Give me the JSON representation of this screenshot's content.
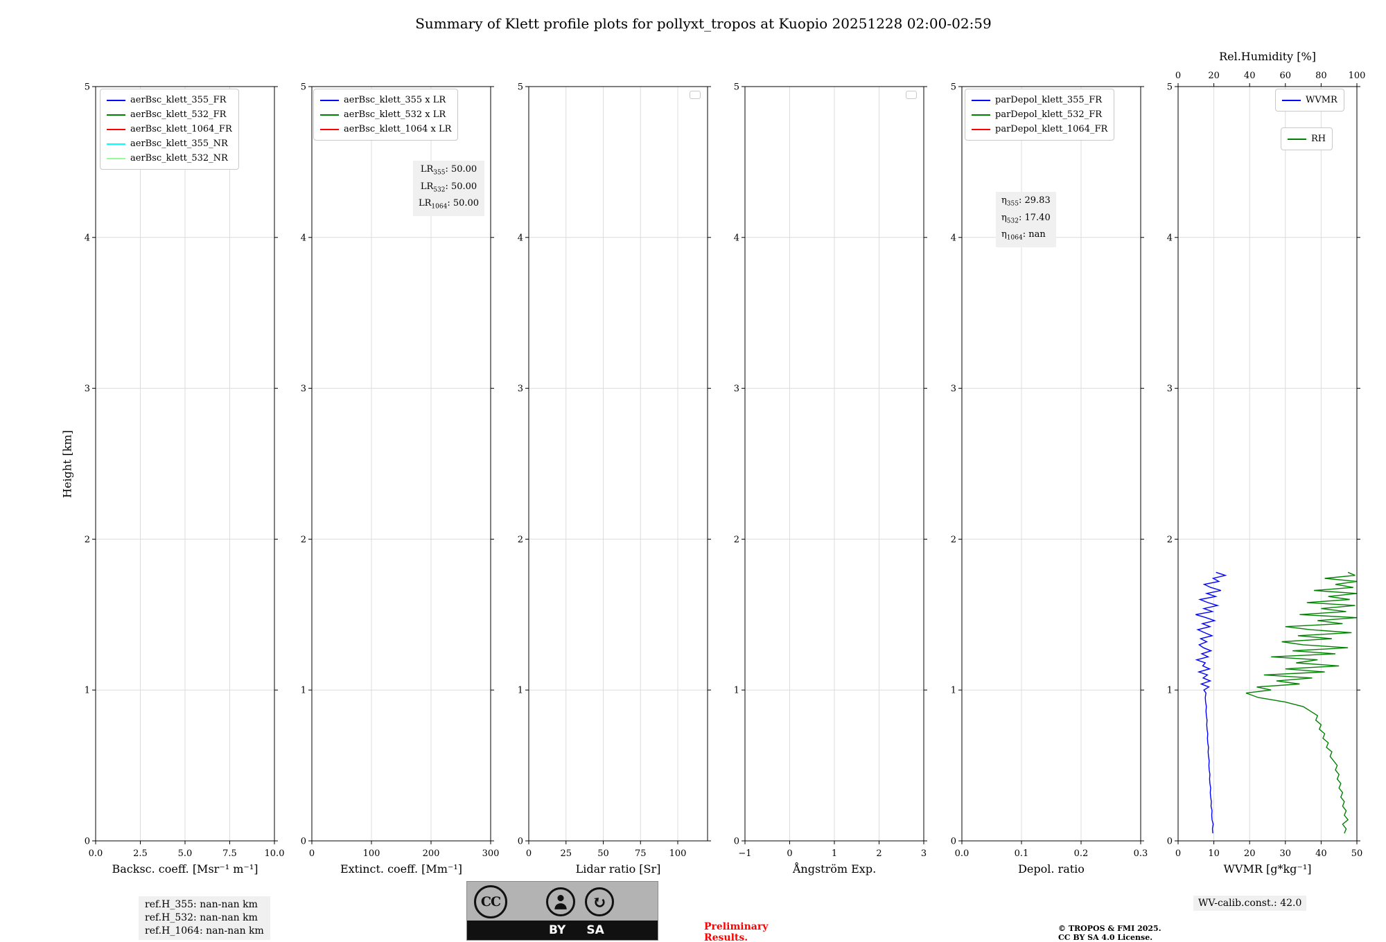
{
  "title": "Summary of Klett profile plots for pollyxt_tropos at Kuopio 20251228 02:00-02:59",
  "ylabel": "Height [km]",
  "y_axis": {
    "lim": [
      0,
      5
    ],
    "ticks": [
      {
        "v": 0,
        "label": "0"
      },
      {
        "v": 1,
        "label": "1"
      },
      {
        "v": 2,
        "label": "2"
      },
      {
        "v": 3,
        "label": "3"
      },
      {
        "v": 4,
        "label": "4"
      },
      {
        "v": 5,
        "label": "5"
      }
    ]
  },
  "colors": {
    "blue": "#0000ff",
    "green": "#008000",
    "red": "#ff0000",
    "cyan": "#00ffff",
    "palegreen": "#98fb98",
    "grid": "#dcdcdc",
    "annotation_bg": "#f0f0f0",
    "preliminary_red": "#ff0000"
  },
  "footer": {
    "ref_lines": [
      "ref.H_355: nan-nan km",
      "ref.H_532: nan-nan km",
      "ref.H_1064: nan-nan km"
    ],
    "cc": "CC",
    "cc_by": "BY",
    "cc_sa": "SA",
    "preliminary_line1": "Preliminary",
    "preliminary_line2": "Results.",
    "copyright_line1": "© TROPOS & FMI 2025.",
    "copyright_line2": "CC BY SA 4.0 License.",
    "wv_calib": "WV-calib.const.: 42.0"
  },
  "chart_data": [
    {
      "name": "backscatter",
      "type": "line",
      "xlabel": "Backsc. coeff. [Msr⁻¹ m⁻¹]",
      "xlim": [
        0,
        10
      ],
      "ylim": [
        0,
        5
      ],
      "grid": true,
      "xticks": [
        {
          "v": 0,
          "label": "0.0"
        },
        {
          "v": 2.5,
          "label": "2.5"
        },
        {
          "v": 5,
          "label": "5.0"
        },
        {
          "v": 7.5,
          "label": "7.5"
        },
        {
          "v": 10,
          "label": "10.0"
        }
      ],
      "legend": [
        {
          "label": "aerBsc_klett_355_FR",
          "color": "#0000ff"
        },
        {
          "label": "aerBsc_klett_532_FR",
          "color": "#008000"
        },
        {
          "label": "aerBsc_klett_1064_FR",
          "color": "#ff0000"
        },
        {
          "label": "aerBsc_klett_355_NR",
          "color": "#00ffff"
        },
        {
          "label": "aerBsc_klett_532_NR",
          "color": "#98fb98"
        }
      ],
      "series": []
    },
    {
      "name": "extinction",
      "type": "line",
      "xlabel": "Extinct. coeff. [Mm⁻¹]",
      "xlim": [
        0,
        300
      ],
      "ylim": [
        0,
        5
      ],
      "grid": true,
      "xticks": [
        {
          "v": 0,
          "label": "0"
        },
        {
          "v": 100,
          "label": "100"
        },
        {
          "v": 200,
          "label": "200"
        },
        {
          "v": 300,
          "label": "300"
        }
      ],
      "legend": [
        {
          "label": "aerBsc_klett_355 x LR",
          "color": "#0000ff"
        },
        {
          "label": "aerBsc_klett_532 x LR",
          "color": "#008000"
        },
        {
          "label": "aerBsc_klett_1064 x LR",
          "color": "#ff0000"
        }
      ],
      "annotation": [
        {
          "pre": "LR",
          "sub": "355",
          "post": ": 50.00"
        },
        {
          "pre": "LR",
          "sub": "532",
          "post": ": 50.00"
        },
        {
          "pre": "LR",
          "sub": "1064",
          "post": ": 50.00"
        }
      ],
      "series": []
    },
    {
      "name": "lidar-ratio",
      "type": "line",
      "xlabel": "Lidar ratio [Sr]",
      "xlim": [
        0,
        120
      ],
      "ylim": [
        0,
        5
      ],
      "grid": true,
      "empty_legend": true,
      "xticks": [
        {
          "v": 0,
          "label": "0"
        },
        {
          "v": 25,
          "label": "25"
        },
        {
          "v": 50,
          "label": "50"
        },
        {
          "v": 75,
          "label": "75"
        },
        {
          "v": 100,
          "label": "100"
        }
      ],
      "series": []
    },
    {
      "name": "angstrom",
      "type": "line",
      "xlabel": "Ångström Exp.",
      "xlim": [
        -1,
        3
      ],
      "ylim": [
        0,
        5
      ],
      "grid": true,
      "empty_legend": true,
      "xticks": [
        {
          "v": -1,
          "label": "−1"
        },
        {
          "v": 0,
          "label": "0"
        },
        {
          "v": 1,
          "label": "1"
        },
        {
          "v": 2,
          "label": "2"
        },
        {
          "v": 3,
          "label": "3"
        }
      ],
      "series": []
    },
    {
      "name": "depol",
      "type": "line",
      "xlabel": "Depol. ratio",
      "xlim": [
        0,
        0.3
      ],
      "ylim": [
        0,
        5
      ],
      "grid": true,
      "xticks": [
        {
          "v": 0,
          "label": "0.0"
        },
        {
          "v": 0.1,
          "label": "0.1"
        },
        {
          "v": 0.2,
          "label": "0.2"
        },
        {
          "v": 0.3,
          "label": "0.3"
        }
      ],
      "legend": [
        {
          "label": "parDepol_klett_355_FR",
          "color": "#0000ff"
        },
        {
          "label": "parDepol_klett_532_FR",
          "color": "#008000"
        },
        {
          "label": "parDepol_klett_1064_FR",
          "color": "#ff0000"
        }
      ],
      "annotation": [
        {
          "pre": "η",
          "sub": "355",
          "post": ": 29.83"
        },
        {
          "pre": "η",
          "sub": "532",
          "post": ": 17.40"
        },
        {
          "pre": "η",
          "sub": "1064",
          "post": ": nan"
        }
      ],
      "series": []
    },
    {
      "name": "wvmr",
      "type": "line",
      "xlabel": "WVMR [g*kg⁻¹]",
      "xlim": [
        0,
        50
      ],
      "ylim": [
        0,
        5
      ],
      "grid": true,
      "xticks": [
        {
          "v": 0,
          "label": "0"
        },
        {
          "v": 10,
          "label": "10"
        },
        {
          "v": 20,
          "label": "20"
        },
        {
          "v": 30,
          "label": "30"
        },
        {
          "v": 40,
          "label": "40"
        },
        {
          "v": 50,
          "label": "50"
        }
      ],
      "top_axis": {
        "label": "Rel.Humidity [%]",
        "lim": [
          0,
          100
        ],
        "ticks": [
          {
            "v": 0,
            "label": "0"
          },
          {
            "v": 20,
            "label": "20"
          },
          {
            "v": 40,
            "label": "40"
          },
          {
            "v": 60,
            "label": "60"
          },
          {
            "v": 80,
            "label": "80"
          },
          {
            "v": 100,
            "label": "100"
          }
        ]
      },
      "legend_boxes": [
        {
          "label": "WVMR",
          "color": "#0000ff"
        },
        {
          "label": "RH",
          "color": "#008000"
        }
      ],
      "series": [
        {
          "name": "WVMR",
          "color": "#0000ff",
          "axis": "bottom",
          "units": "g/kg",
          "points": [
            [
              9.7,
              0.05
            ],
            [
              9.6,
              0.08
            ],
            [
              9.8,
              0.11
            ],
            [
              9.5,
              0.14
            ],
            [
              9.4,
              0.17
            ],
            [
              9.5,
              0.2
            ],
            [
              9.2,
              0.23
            ],
            [
              9.3,
              0.26
            ],
            [
              9.1,
              0.29
            ],
            [
              9.0,
              0.32
            ],
            [
              9.1,
              0.35
            ],
            [
              8.9,
              0.38
            ],
            [
              8.8,
              0.41
            ],
            [
              8.9,
              0.44
            ],
            [
              8.7,
              0.47
            ],
            [
              8.6,
              0.5
            ],
            [
              8.7,
              0.53
            ],
            [
              8.5,
              0.56
            ],
            [
              8.4,
              0.59
            ],
            [
              8.5,
              0.62
            ],
            [
              8.3,
              0.65
            ],
            [
              8.2,
              0.68
            ],
            [
              8.3,
              0.71
            ],
            [
              8.1,
              0.74
            ],
            [
              8.0,
              0.77
            ],
            [
              8.1,
              0.8
            ],
            [
              7.9,
              0.83
            ],
            [
              7.8,
              0.86
            ],
            [
              7.9,
              0.89
            ],
            [
              7.7,
              0.92
            ],
            [
              7.6,
              0.95
            ],
            [
              7.8,
              0.98
            ],
            [
              7.2,
              1.0
            ],
            [
              8.6,
              1.02
            ],
            [
              6.5,
              1.04
            ],
            [
              9.0,
              1.06
            ],
            [
              7.0,
              1.08
            ],
            [
              8.2,
              1.1
            ],
            [
              5.8,
              1.12
            ],
            [
              8.8,
              1.14
            ],
            [
              6.9,
              1.16
            ],
            [
              7.6,
              1.18
            ],
            [
              5.2,
              1.2
            ],
            [
              8.4,
              1.22
            ],
            [
              6.6,
              1.24
            ],
            [
              9.2,
              1.26
            ],
            [
              7.1,
              1.28
            ],
            [
              5.9,
              1.3
            ],
            [
              8.0,
              1.32
            ],
            [
              6.3,
              1.34
            ],
            [
              9.5,
              1.36
            ],
            [
              7.4,
              1.38
            ],
            [
              5.5,
              1.4
            ],
            [
              8.9,
              1.42
            ],
            [
              6.8,
              1.44
            ],
            [
              10.2,
              1.46
            ],
            [
              7.8,
              1.48
            ],
            [
              4.9,
              1.5
            ],
            [
              9.6,
              1.52
            ],
            [
              7.2,
              1.54
            ],
            [
              11.0,
              1.56
            ],
            [
              8.3,
              1.58
            ],
            [
              6.1,
              1.6
            ],
            [
              10.5,
              1.62
            ],
            [
              8.0,
              1.64
            ],
            [
              12.0,
              1.66
            ],
            [
              9.1,
              1.68
            ],
            [
              7.3,
              1.7
            ],
            [
              11.4,
              1.72
            ],
            [
              9.8,
              1.74
            ],
            [
              13.2,
              1.76
            ],
            [
              10.6,
              1.78
            ]
          ]
        },
        {
          "name": "RH",
          "color": "#008000",
          "axis": "top",
          "units": "%",
          "points": [
            [
              93,
              0.05
            ],
            [
              94,
              0.08
            ],
            [
              92,
              0.11
            ],
            [
              95,
              0.14
            ],
            [
              93,
              0.17
            ],
            [
              94,
              0.2
            ],
            [
              92,
              0.23
            ],
            [
              93,
              0.26
            ],
            [
              91,
              0.29
            ],
            [
              92,
              0.32
            ],
            [
              90,
              0.35
            ],
            [
              91,
              0.38
            ],
            [
              89,
              0.41
            ],
            [
              90,
              0.44
            ],
            [
              88,
              0.47
            ],
            [
              89,
              0.5
            ],
            [
              87,
              0.53
            ],
            [
              85,
              0.56
            ],
            [
              86,
              0.59
            ],
            [
              83,
              0.62
            ],
            [
              84,
              0.65
            ],
            [
              81,
              0.68
            ],
            [
              82,
              0.71
            ],
            [
              79,
              0.74
            ],
            [
              80,
              0.77
            ],
            [
              77,
              0.8
            ],
            [
              78,
              0.83
            ],
            [
              74,
              0.86
            ],
            [
              70,
              0.89
            ],
            [
              60,
              0.92
            ],
            [
              45,
              0.95
            ],
            [
              38,
              0.98
            ],
            [
              52,
              1.0
            ],
            [
              44,
              1.02
            ],
            [
              68,
              1.04
            ],
            [
              55,
              1.06
            ],
            [
              75,
              1.08
            ],
            [
              48,
              1.1
            ],
            [
              82,
              1.12
            ],
            [
              60,
              1.14
            ],
            [
              90,
              1.16
            ],
            [
              66,
              1.18
            ],
            [
              78,
              1.2
            ],
            [
              52,
              1.22
            ],
            [
              88,
              1.24
            ],
            [
              64,
              1.26
            ],
            [
              95,
              1.28
            ],
            [
              70,
              1.3
            ],
            [
              58,
              1.32
            ],
            [
              86,
              1.34
            ],
            [
              67,
              1.36
            ],
            [
              97,
              1.38
            ],
            [
              74,
              1.4
            ],
            [
              60,
              1.42
            ],
            [
              92,
              1.44
            ],
            [
              78,
              1.46
            ],
            [
              100,
              1.48
            ],
            [
              68,
              1.5
            ],
            [
              94,
              1.52
            ],
            [
              80,
              1.54
            ],
            [
              99,
              1.56
            ],
            [
              72,
              1.58
            ],
            [
              96,
              1.6
            ],
            [
              84,
              1.62
            ],
            [
              100,
              1.64
            ],
            [
              76,
              1.66
            ],
            [
              98,
              1.68
            ],
            [
              88,
              1.7
            ],
            [
              100,
              1.72
            ],
            [
              82,
              1.74
            ],
            [
              99,
              1.76
            ],
            [
              95,
              1.78
            ]
          ]
        }
      ]
    }
  ]
}
